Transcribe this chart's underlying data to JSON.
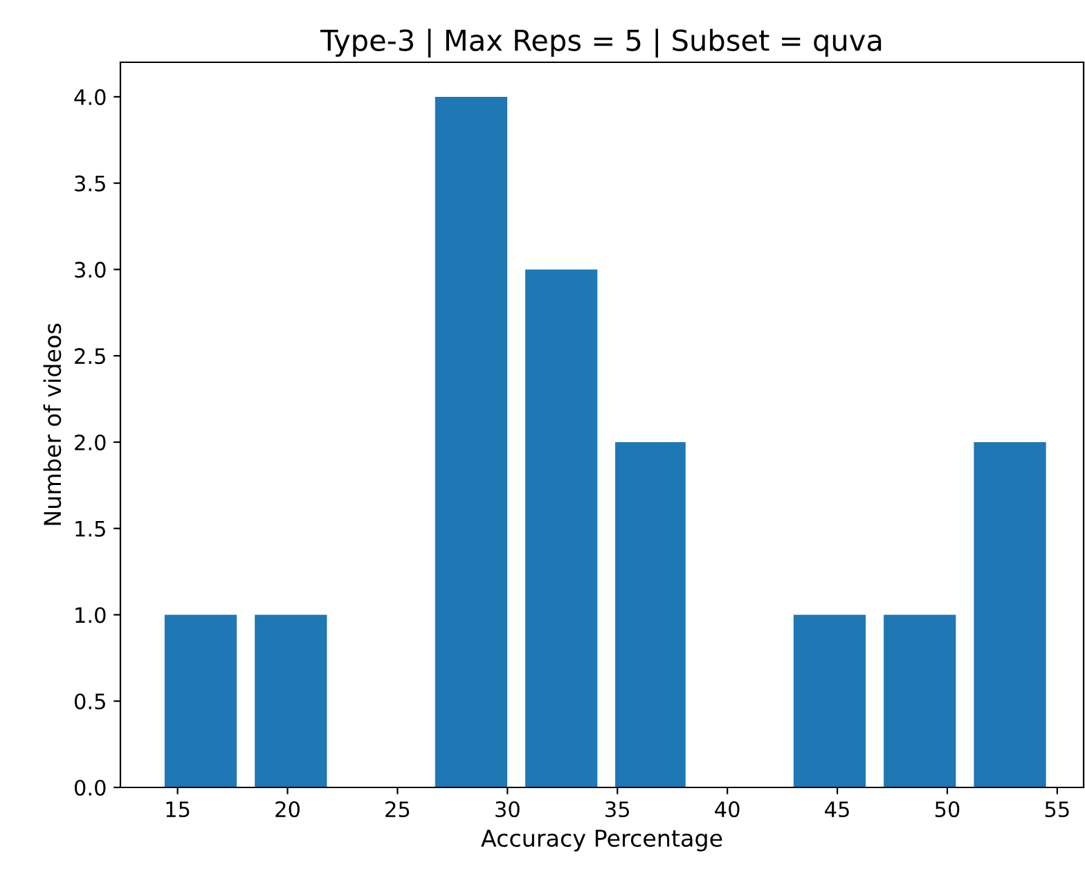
{
  "chart_data": {
    "type": "histogram",
    "title": "Type-3 | Max Reps = 5 | Subset = quva",
    "xlabel": "Accuracy Percentage",
    "ylabel": "Number of videos",
    "bins": [
      14.0,
      18.1,
      22.2,
      26.3,
      30.4,
      34.5,
      38.5,
      42.6,
      46.7,
      50.8,
      54.9
    ],
    "values": [
      1,
      1,
      0,
      4,
      3,
      2,
      0,
      1,
      1,
      2
    ],
    "color": "#1f77b4",
    "xlim": [
      12.4,
      56.2
    ],
    "xticks": [
      15,
      20,
      25,
      30,
      35,
      40,
      45,
      50,
      55
    ],
    "ylim": [
      0,
      4.2
    ],
    "yticks": [
      {
        "value": 0,
        "label": "0.0"
      },
      {
        "value": 0.5,
        "label": "0.5"
      },
      {
        "value": 1,
        "label": "1.0"
      },
      {
        "value": 1.5,
        "label": "1.5"
      },
      {
        "value": 2,
        "label": "2.0"
      },
      {
        "value": 2.5,
        "label": "2.5"
      },
      {
        "value": 3,
        "label": "3.0"
      },
      {
        "value": 3.5,
        "label": "3.5"
      },
      {
        "value": 4,
        "label": "4.0"
      }
    ],
    "grid": false
  }
}
